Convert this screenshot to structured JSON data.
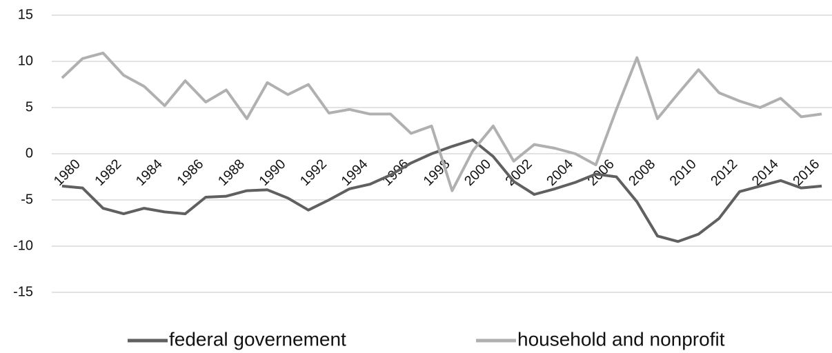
{
  "chart_data": {
    "type": "line",
    "categories": [
      "1980",
      null,
      "1982",
      null,
      "1984",
      null,
      "1986",
      null,
      "1988",
      null,
      "1990",
      null,
      "1992",
      null,
      "1994",
      null,
      "1996",
      null,
      "1998",
      null,
      "2000",
      null,
      "2002",
      null,
      "2004",
      null,
      "2006",
      null,
      "2008",
      null,
      "2010",
      null,
      "2012",
      null,
      "2014",
      null,
      "2016",
      null
    ],
    "series": [
      {
        "name": "federal governement",
        "color": "#606060",
        "values": [
          -3.5,
          -3.7,
          -5.9,
          -6.5,
          -5.9,
          -6.3,
          -6.5,
          -4.7,
          -4.6,
          -4.0,
          -3.9,
          -4.8,
          -6.1,
          -5.0,
          -3.8,
          -3.3,
          -2.3,
          -1.0,
          0.0,
          0.8,
          1.5,
          -0.3,
          -3.0,
          -4.4,
          -3.8,
          -3.1,
          -2.2,
          -2.5,
          -5.2,
          -8.9,
          -9.5,
          -8.7,
          -7.0,
          -4.1,
          -3.5,
          -2.9,
          -3.7,
          -3.5
        ]
      },
      {
        "name": "household and nonprofit",
        "color": "#b0b0b0",
        "values": [
          8.2,
          10.3,
          10.9,
          8.5,
          7.3,
          5.2,
          7.9,
          5.6,
          6.9,
          3.8,
          7.7,
          6.4,
          7.5,
          4.4,
          4.8,
          4.3,
          4.3,
          2.2,
          3.0,
          -4.0,
          0.3,
          3.0,
          -0.8,
          1.0,
          0.6,
          0.0,
          -1.2,
          4.8,
          10.4,
          3.8,
          6.5,
          9.1,
          6.6,
          5.7,
          5.0,
          6.0,
          4.0,
          4.3
        ]
      }
    ],
    "ylim": [
      -15,
      15
    ],
    "yticks": [
      -15,
      -10,
      -5,
      0,
      5,
      10,
      15
    ],
    "grid": true,
    "legend": "bottom"
  }
}
